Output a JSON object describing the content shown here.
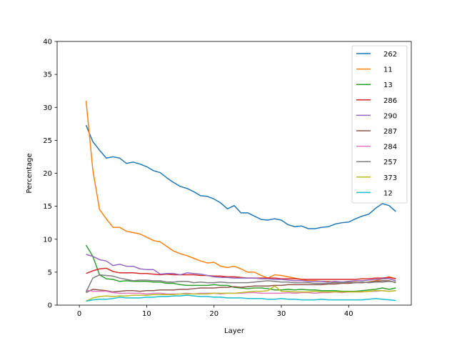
{
  "chart_data": {
    "type": "line",
    "title": "",
    "xlabel": "Layer",
    "ylabel": "Percentage",
    "xlim": [
      -3.3,
      49.3
    ],
    "ylim": [
      0,
      40
    ],
    "xticks": [
      0,
      10,
      20,
      30,
      40
    ],
    "yticks": [
      0,
      5,
      10,
      15,
      20,
      25,
      30,
      35,
      40
    ],
    "grid": false,
    "legend_position": "top-right",
    "x": [
      1,
      2,
      3,
      4,
      5,
      6,
      7,
      8,
      9,
      10,
      11,
      12,
      13,
      14,
      15,
      16,
      17,
      18,
      19,
      20,
      21,
      22,
      23,
      24,
      25,
      26,
      27,
      28,
      29,
      30,
      31,
      32,
      33,
      34,
      35,
      36,
      37,
      38,
      39,
      40,
      41,
      42,
      43,
      44,
      45,
      46,
      47
    ],
    "series": [
      {
        "name": "262",
        "color": "#1f77b4",
        "values": [
          27.3,
          24.8,
          23.5,
          22.3,
          22.5,
          22.3,
          21.5,
          21.7,
          21.4,
          21.0,
          20.4,
          20.1,
          19.3,
          18.6,
          18.0,
          17.7,
          17.2,
          16.6,
          16.5,
          16.1,
          15.5,
          14.6,
          15.1,
          14.0,
          14.0,
          13.5,
          13.0,
          12.9,
          13.1,
          12.9,
          12.2,
          11.9,
          12.0,
          11.6,
          11.6,
          11.8,
          11.9,
          12.3,
          12.5,
          12.6,
          13.1,
          13.5,
          13.8,
          14.7,
          15.4,
          15.1,
          14.2
        ]
      },
      {
        "name": "11",
        "color": "#ff7f0e",
        "values": [
          31.0,
          20.5,
          14.5,
          13.1,
          11.8,
          11.8,
          11.2,
          11.0,
          10.8,
          10.3,
          9.8,
          9.6,
          8.9,
          8.2,
          7.8,
          7.5,
          7.1,
          6.7,
          6.4,
          6.5,
          5.9,
          5.7,
          5.9,
          5.5,
          5.0,
          5.0,
          4.5,
          4.1,
          4.6,
          4.5,
          4.3,
          4.1,
          3.9,
          3.7,
          3.7,
          3.6,
          3.6,
          3.4,
          3.5,
          3.4,
          3.5,
          3.4,
          3.5,
          3.7,
          4.0,
          4.3,
          4.0
        ]
      },
      {
        "name": "13",
        "color": "#2ca02c",
        "values": [
          9.1,
          7.4,
          4.6,
          4.0,
          3.9,
          3.6,
          3.7,
          3.6,
          3.6,
          3.6,
          3.5,
          3.5,
          3.3,
          3.3,
          3.1,
          3.0,
          3.0,
          3.0,
          3.0,
          3.1,
          3.0,
          3.0,
          2.7,
          2.6,
          2.5,
          2.6,
          2.6,
          2.5,
          2.3,
          2.3,
          2.4,
          2.3,
          2.4,
          2.3,
          2.3,
          2.2,
          2.2,
          2.2,
          2.1,
          2.1,
          2.1,
          2.2,
          2.3,
          2.4,
          2.6,
          2.4,
          2.6
        ]
      },
      {
        "name": "286",
        "color": "#d62728",
        "values": [
          4.8,
          5.2,
          5.5,
          5.6,
          5.1,
          4.9,
          4.9,
          4.9,
          4.8,
          4.8,
          4.7,
          4.6,
          4.7,
          4.6,
          4.6,
          4.6,
          4.6,
          4.5,
          4.5,
          4.4,
          4.4,
          4.3,
          4.3,
          4.2,
          4.1,
          4.1,
          4.1,
          4.1,
          4.1,
          4.0,
          4.0,
          4.0,
          3.9,
          3.9,
          3.9,
          3.9,
          3.9,
          3.9,
          3.9,
          3.9,
          3.9,
          4.0,
          4.0,
          4.1,
          4.1,
          4.2,
          4.0
        ]
      },
      {
        "name": "290",
        "color": "#9467bd",
        "values": [
          7.7,
          7.4,
          6.9,
          6.7,
          6.0,
          6.2,
          5.9,
          5.9,
          5.5,
          5.4,
          5.4,
          4.7,
          4.8,
          4.8,
          4.6,
          4.9,
          4.8,
          4.7,
          4.5,
          4.3,
          4.2,
          4.2,
          4.1,
          4.1,
          4.1,
          4.1,
          4.0,
          4.0,
          3.9,
          3.9,
          3.8,
          3.7,
          3.7,
          3.6,
          3.6,
          3.6,
          3.5,
          3.6,
          3.5,
          3.6,
          3.7,
          3.7,
          3.8,
          3.9,
          4.0,
          4.0,
          3.7
        ]
      },
      {
        "name": "287",
        "color": "#8c564b",
        "values": [
          1.9,
          2.4,
          2.3,
          2.2,
          2.0,
          2.1,
          2.2,
          2.2,
          2.1,
          2.2,
          2.2,
          2.3,
          2.3,
          2.3,
          2.4,
          2.4,
          2.5,
          2.6,
          2.6,
          2.6,
          2.7,
          2.7,
          2.8,
          2.7,
          2.8,
          2.9,
          2.9,
          2.9,
          3.0,
          3.0,
          3.1,
          3.1,
          3.1,
          3.1,
          3.1,
          3.1,
          3.2,
          3.2,
          3.3,
          3.3,
          3.4,
          3.4,
          3.5,
          3.6,
          3.7,
          3.7,
          3.4
        ]
      },
      {
        "name": "284",
        "color": "#e377c2",
        "values": [
          2.3,
          2.1,
          2.1,
          2.1,
          1.9,
          1.8,
          1.8,
          1.8,
          1.8,
          1.7,
          1.8,
          1.8,
          1.7,
          1.7,
          1.7,
          1.8,
          1.7,
          1.8,
          1.8,
          1.8,
          1.7,
          1.8,
          1.8,
          1.8,
          1.9,
          1.9,
          1.8,
          1.8,
          1.8,
          1.8,
          1.9,
          1.8,
          1.9,
          1.9,
          1.8,
          1.9,
          1.9,
          2.0,
          1.9,
          2.0,
          2.0,
          2.0,
          2.1,
          2.1,
          2.2,
          2.1,
          2.2
        ]
      },
      {
        "name": "257",
        "color": "#7f7f7f",
        "values": [
          2.0,
          4.1,
          4.6,
          4.5,
          4.4,
          4.1,
          3.9,
          3.7,
          3.8,
          3.8,
          3.7,
          3.7,
          3.5,
          3.5,
          3.6,
          3.6,
          3.4,
          3.5,
          3.4,
          3.4,
          3.5,
          3.4,
          3.4,
          3.4,
          3.4,
          3.5,
          3.6,
          3.7,
          3.6,
          3.5,
          3.5,
          3.4,
          3.4,
          3.4,
          3.3,
          3.3,
          3.3,
          3.4,
          3.4,
          3.5,
          3.4,
          3.5,
          3.4,
          3.5,
          3.5,
          3.6,
          3.5
        ]
      },
      {
        "name": "373",
        "color": "#bcbd22",
        "values": [
          0.6,
          1.1,
          1.3,
          1.4,
          1.3,
          1.4,
          1.4,
          1.5,
          1.5,
          1.5,
          1.6,
          1.6,
          1.6,
          1.6,
          1.7,
          1.7,
          1.7,
          1.7,
          1.7,
          1.8,
          1.8,
          1.8,
          1.8,
          1.9,
          2.0,
          2.1,
          2.1,
          2.2,
          2.9,
          2.1,
          2.1,
          2.0,
          2.0,
          2.0,
          2.1,
          2.0,
          2.0,
          2.0,
          2.0,
          2.0,
          2.0,
          2.0,
          2.1,
          2.2,
          2.2,
          2.1,
          2.2
        ]
      },
      {
        "name": "12",
        "color": "#17becf",
        "values": [
          0.6,
          0.8,
          0.9,
          0.9,
          1.0,
          1.2,
          1.1,
          1.1,
          1.1,
          1.2,
          1.2,
          1.3,
          1.3,
          1.4,
          1.4,
          1.5,
          1.4,
          1.3,
          1.3,
          1.2,
          1.2,
          1.1,
          1.1,
          1.1,
          1.0,
          1.0,
          1.0,
          0.9,
          0.9,
          1.0,
          0.9,
          0.9,
          0.8,
          0.8,
          0.8,
          0.9,
          0.8,
          0.8,
          0.8,
          0.8,
          0.8,
          0.8,
          0.9,
          1.0,
          0.9,
          0.8,
          0.7
        ]
      }
    ]
  }
}
